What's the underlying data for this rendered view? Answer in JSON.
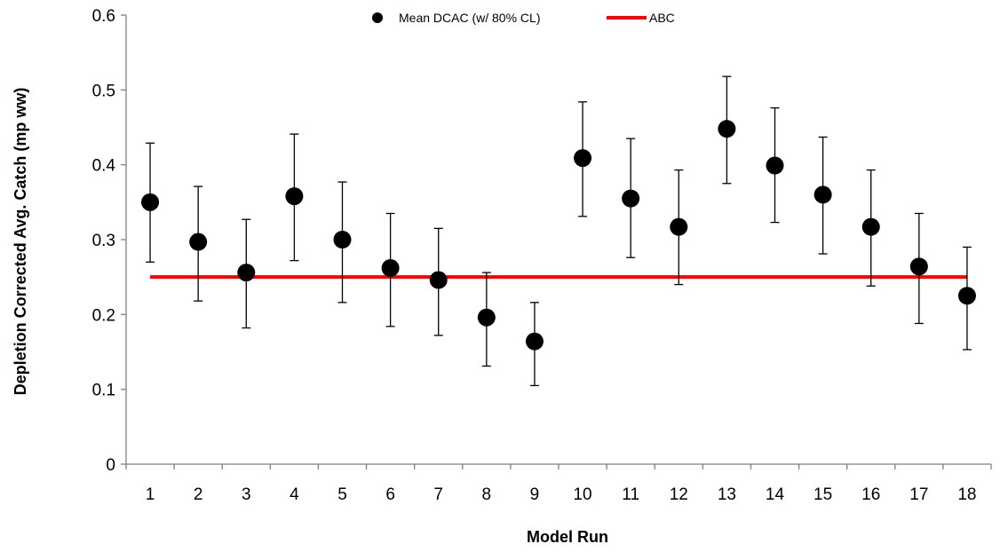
{
  "chart_data": {
    "type": "scatter",
    "xlabel": "Model Run",
    "ylabel": "Depletion Corrected Avg. Catch (mp ww)",
    "ylim": [
      0,
      0.6
    ],
    "yticks": [
      "0",
      "0.1",
      "0.2",
      "0.3",
      "0.4",
      "0.5",
      "0.6"
    ],
    "categories": [
      "1",
      "2",
      "3",
      "4",
      "5",
      "6",
      "7",
      "8",
      "9",
      "10",
      "11",
      "12",
      "13",
      "14",
      "15",
      "16",
      "17",
      "18"
    ],
    "legend_position": "top",
    "series": [
      {
        "name": "Mean DCAC (w/ 80% CL)",
        "kind": "points-with-errorbars",
        "color": "#000000",
        "values": [
          0.35,
          0.297,
          0.256,
          0.358,
          0.3,
          0.262,
          0.246,
          0.196,
          0.164,
          0.409,
          0.355,
          0.317,
          0.448,
          0.399,
          0.36,
          0.317,
          0.264,
          0.225
        ],
        "lower": [
          0.27,
          0.218,
          0.182,
          0.272,
          0.216,
          0.184,
          0.172,
          0.131,
          0.105,
          0.331,
          0.276,
          0.24,
          0.375,
          0.323,
          0.281,
          0.238,
          0.188,
          0.153
        ],
        "upper": [
          0.429,
          0.371,
          0.327,
          0.441,
          0.377,
          0.335,
          0.315,
          0.256,
          0.216,
          0.484,
          0.435,
          0.393,
          0.518,
          0.476,
          0.437,
          0.393,
          0.335,
          0.29
        ]
      },
      {
        "name": "ABC",
        "kind": "line",
        "color": "#ff0000",
        "values": [
          0.25,
          0.25,
          0.25,
          0.25,
          0.25,
          0.25,
          0.25,
          0.25,
          0.25,
          0.25,
          0.25,
          0.25,
          0.25,
          0.25,
          0.25,
          0.25,
          0.25,
          0.25
        ]
      }
    ]
  }
}
